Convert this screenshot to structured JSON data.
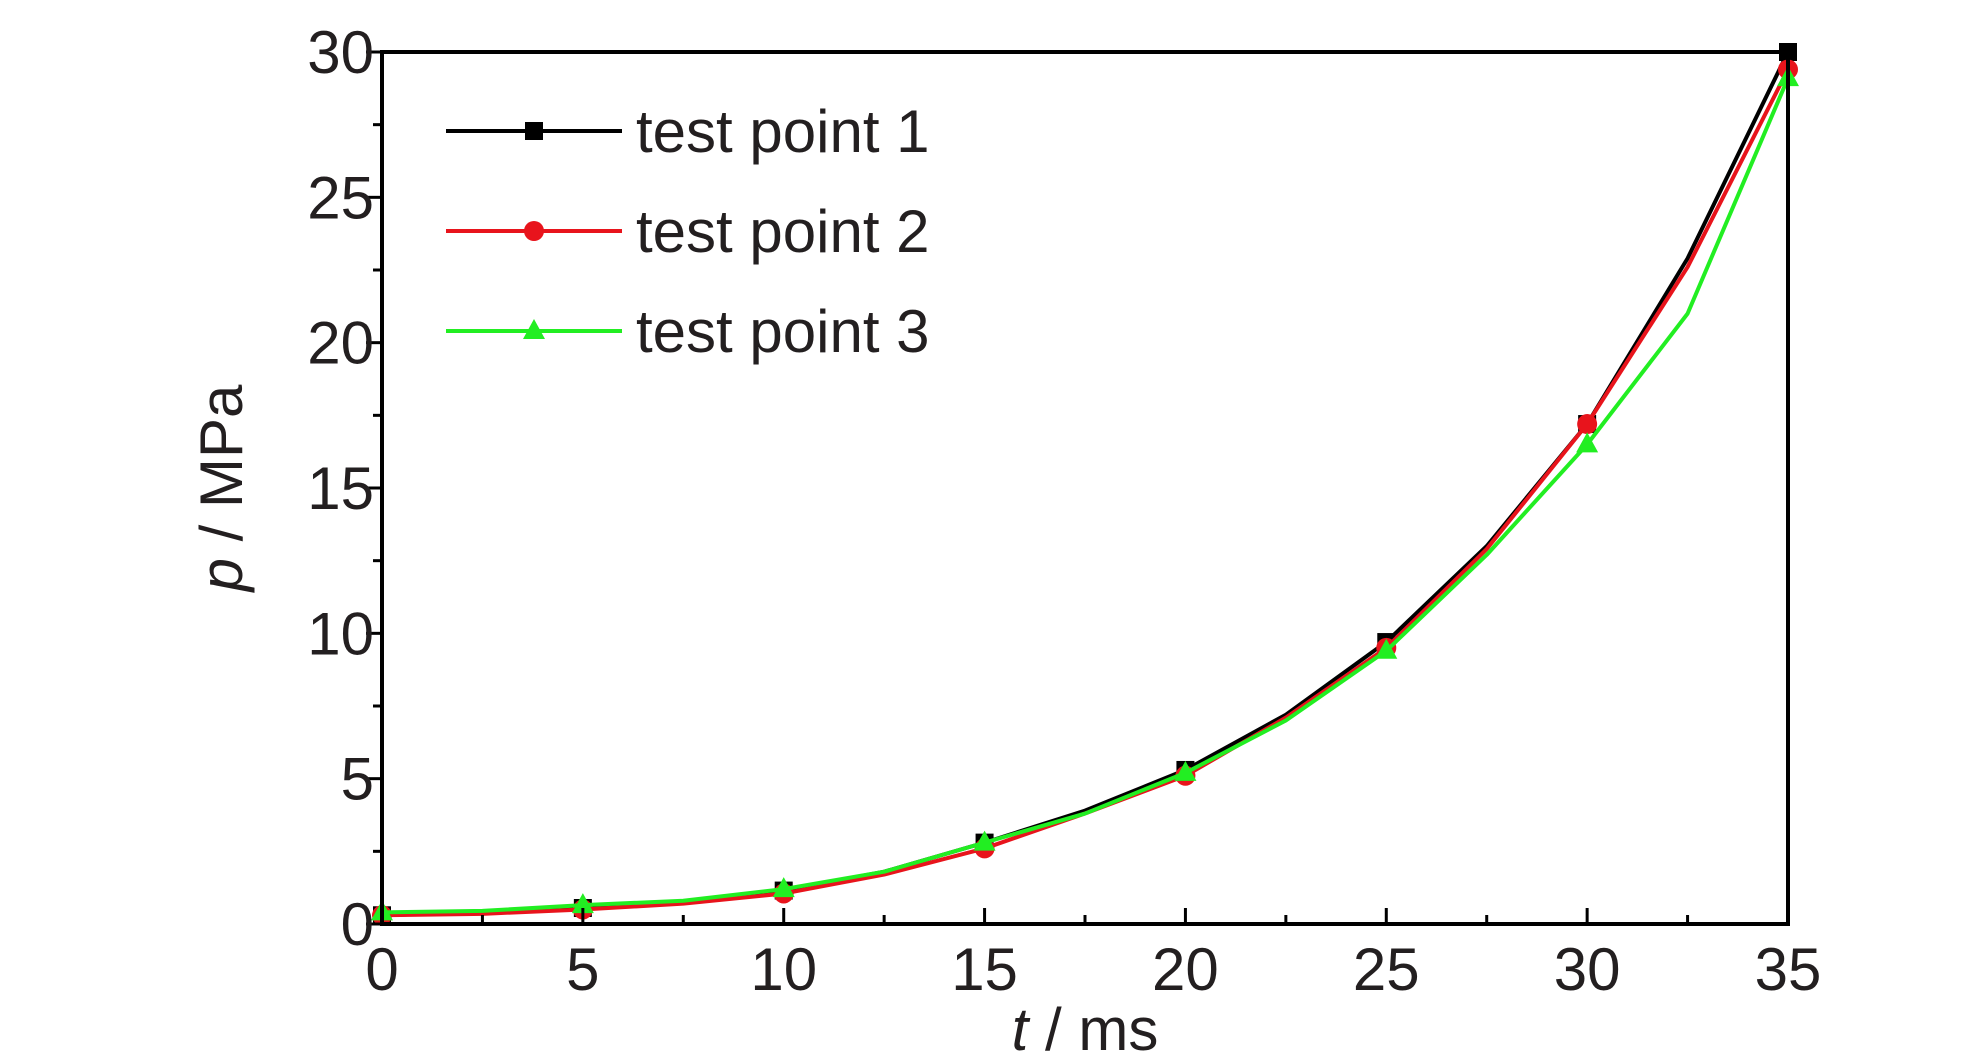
{
  "chart_data": {
    "type": "line",
    "xlabel": {
      "var": "t",
      "unit": "/ ms"
    },
    "ylabel": {
      "var": "p",
      "unit": "/ MPa"
    },
    "xlim": [
      0,
      35
    ],
    "ylim": [
      0,
      30
    ],
    "xticks": [
      "0",
      "5",
      "10",
      "15",
      "20",
      "25",
      "30",
      "35"
    ],
    "yticks": [
      "0",
      "5",
      "10",
      "15",
      "20",
      "25",
      "30"
    ],
    "grid": false,
    "legend_position": "top-left",
    "series": [
      {
        "name": "test point 1",
        "color": "#000000",
        "marker": "square",
        "x": [
          0,
          2.5,
          5,
          7.5,
          10,
          12.5,
          15,
          17.5,
          20,
          22.5,
          25,
          27.5,
          30,
          32.5,
          35
        ],
        "y": [
          0.3,
          0.4,
          0.55,
          0.75,
          1.15,
          1.8,
          2.8,
          3.9,
          5.3,
          7.2,
          9.7,
          13.0,
          17.2,
          22.9,
          30.0
        ]
      },
      {
        "name": "test point 2",
        "color": "#e8141c",
        "marker": "circle",
        "x": [
          0,
          2.5,
          5,
          7.5,
          10,
          12.5,
          15,
          17.5,
          20,
          22.5,
          25,
          27.5,
          30,
          32.5,
          35
        ],
        "y": [
          0.3,
          0.35,
          0.5,
          0.7,
          1.05,
          1.7,
          2.6,
          3.8,
          5.1,
          7.1,
          9.5,
          12.9,
          17.2,
          22.6,
          29.4
        ]
      },
      {
        "name": "test point 3",
        "color": "#22ee22",
        "marker": "triangle",
        "x": [
          0,
          2.5,
          5,
          7.5,
          10,
          12.5,
          15,
          17.5,
          20,
          22.5,
          25,
          27.5,
          30,
          32.5,
          35
        ],
        "y": [
          0.4,
          0.45,
          0.65,
          0.8,
          1.2,
          1.8,
          2.8,
          3.8,
          5.2,
          7.0,
          9.4,
          12.7,
          16.5,
          21.0,
          29.1
        ]
      }
    ]
  }
}
